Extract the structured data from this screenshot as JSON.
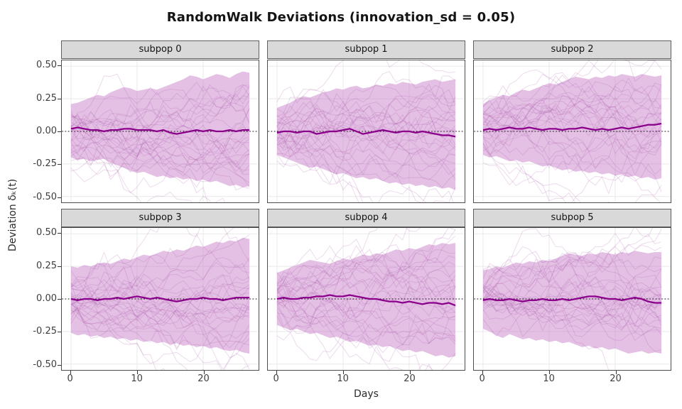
{
  "chart_data": {
    "type": "line",
    "title": "RandomWalk Deviations (innovation_sd = 0.05)",
    "xlabel": "Days",
    "ylabel": "Deviation δₖ(t)",
    "innovation_sd": 0.05,
    "x_ticks": [
      0,
      10,
      20
    ],
    "x_tick_labels": [
      "0",
      "10",
      "20"
    ],
    "y_ticks": [
      0.5,
      0.25,
      0.0,
      -0.25,
      -0.5
    ],
    "y_tick_labels": [
      "0.50",
      "0.25",
      "0.00",
      "-0.25",
      "-0.50"
    ],
    "xlim": [
      -1.35,
      28.35
    ],
    "ylim": [
      -0.545,
      0.545
    ],
    "grid": "major-light-gray-on-white",
    "legend": "none",
    "zero_reference_line": 0.0,
    "days": [
      0,
      1,
      2,
      3,
      4,
      5,
      6,
      7,
      8,
      9,
      10,
      11,
      12,
      13,
      14,
      15,
      16,
      17,
      18,
      19,
      20,
      21,
      22,
      23,
      24,
      25,
      26,
      27
    ],
    "colors": {
      "ribbon_fill": "#c77cc9",
      "trajectory_stroke": "#a855a8",
      "median_stroke": "#8b008b",
      "zero_line": "#000000",
      "gridline": "#e9e9e9",
      "strip_bg": "#d9d9d9",
      "panel_border": "#4d4d4d"
    },
    "facets": [
      {
        "label": "subpop 0",
        "traj_seed": 11,
        "traj_count": 30,
        "median": [
          0.02,
          0.03,
          0.02,
          0.01,
          0.01,
          0.0,
          0.01,
          0.01,
          0.02,
          0.02,
          0.01,
          0.01,
          0.01,
          0.0,
          0.01,
          -0.01,
          -0.02,
          -0.01,
          0.0,
          0.01,
          0.0,
          0.01,
          0.0,
          0.0,
          0.01,
          0.0,
          0.01,
          0.01
        ],
        "upper": [
          0.21,
          0.22,
          0.24,
          0.26,
          0.28,
          0.27,
          0.3,
          0.32,
          0.34,
          0.33,
          0.31,
          0.32,
          0.33,
          0.32,
          0.34,
          0.36,
          0.38,
          0.4,
          0.43,
          0.42,
          0.4,
          0.42,
          0.44,
          0.43,
          0.41,
          0.44,
          0.46,
          0.45
        ],
        "lower": [
          -0.2,
          -0.22,
          -0.21,
          -0.23,
          -0.22,
          -0.21,
          -0.24,
          -0.26,
          -0.28,
          -0.3,
          -0.32,
          -0.31,
          -0.33,
          -0.35,
          -0.34,
          -0.36,
          -0.35,
          -0.37,
          -0.36,
          -0.38,
          -0.37,
          -0.39,
          -0.38,
          -0.4,
          -0.42,
          -0.41,
          -0.43,
          -0.42
        ]
      },
      {
        "label": "subpop 1",
        "traj_seed": 23,
        "traj_count": 30,
        "median": [
          -0.01,
          0.0,
          0.0,
          -0.01,
          0.0,
          0.0,
          -0.02,
          -0.01,
          0.0,
          0.0,
          0.01,
          0.02,
          0.0,
          -0.02,
          -0.01,
          0.0,
          0.01,
          0.0,
          -0.01,
          0.0,
          0.0,
          -0.01,
          0.0,
          -0.01,
          -0.02,
          -0.03,
          -0.03,
          -0.04
        ],
        "upper": [
          0.18,
          0.2,
          0.22,
          0.25,
          0.27,
          0.26,
          0.28,
          0.3,
          0.31,
          0.33,
          0.32,
          0.34,
          0.35,
          0.33,
          0.34,
          0.36,
          0.35,
          0.37,
          0.36,
          0.38,
          0.37,
          0.36,
          0.38,
          0.39,
          0.4,
          0.38,
          0.39,
          0.4
        ],
        "lower": [
          -0.18,
          -0.2,
          -0.22,
          -0.24,
          -0.26,
          -0.28,
          -0.27,
          -0.29,
          -0.31,
          -0.33,
          -0.32,
          -0.34,
          -0.36,
          -0.35,
          -0.37,
          -0.36,
          -0.38,
          -0.4,
          -0.39,
          -0.41,
          -0.4,
          -0.42,
          -0.41,
          -0.43,
          -0.42,
          -0.44,
          -0.43,
          -0.45
        ]
      },
      {
        "label": "subpop 2",
        "traj_seed": 37,
        "traj_count": 30,
        "median": [
          0.01,
          0.02,
          0.01,
          0.02,
          0.03,
          0.02,
          0.02,
          0.03,
          0.02,
          0.01,
          0.02,
          0.02,
          0.01,
          0.02,
          0.02,
          0.03,
          0.02,
          0.01,
          0.02,
          0.01,
          0.02,
          0.03,
          0.02,
          0.03,
          0.04,
          0.05,
          0.05,
          0.06
        ],
        "upper": [
          0.21,
          0.24,
          0.26,
          0.28,
          0.27,
          0.3,
          0.32,
          0.31,
          0.33,
          0.35,
          0.37,
          0.36,
          0.38,
          0.4,
          0.42,
          0.41,
          0.4,
          0.42,
          0.41,
          0.43,
          0.42,
          0.44,
          0.43,
          0.42,
          0.44,
          0.43,
          0.42,
          0.43
        ],
        "lower": [
          -0.18,
          -0.2,
          -0.19,
          -0.21,
          -0.23,
          -0.22,
          -0.24,
          -0.23,
          -0.25,
          -0.27,
          -0.26,
          -0.28,
          -0.3,
          -0.29,
          -0.31,
          -0.3,
          -0.32,
          -0.31,
          -0.33,
          -0.32,
          -0.34,
          -0.33,
          -0.35,
          -0.34,
          -0.36,
          -0.35,
          -0.37,
          -0.36
        ]
      },
      {
        "label": "subpop 3",
        "traj_seed": 41,
        "traj_count": 30,
        "median": [
          0.0,
          -0.01,
          0.0,
          0.0,
          -0.01,
          0.0,
          0.0,
          0.01,
          0.0,
          0.01,
          0.02,
          0.01,
          0.0,
          0.01,
          0.0,
          -0.01,
          -0.02,
          -0.01,
          0.0,
          0.0,
          0.01,
          0.0,
          0.0,
          -0.01,
          0.0,
          0.01,
          0.01,
          0.01
        ],
        "upper": [
          0.25,
          0.24,
          0.26,
          0.25,
          0.27,
          0.28,
          0.27,
          0.29,
          0.31,
          0.3,
          0.32,
          0.34,
          0.33,
          0.35,
          0.37,
          0.36,
          0.38,
          0.37,
          0.39,
          0.41,
          0.4,
          0.42,
          0.44,
          0.43,
          0.45,
          0.44,
          0.47,
          0.46
        ],
        "lower": [
          -0.26,
          -0.28,
          -0.27,
          -0.29,
          -0.28,
          -0.3,
          -0.29,
          -0.31,
          -0.3,
          -0.32,
          -0.31,
          -0.33,
          -0.32,
          -0.34,
          -0.33,
          -0.35,
          -0.34,
          -0.36,
          -0.35,
          -0.37,
          -0.36,
          -0.38,
          -0.37,
          -0.39,
          -0.4,
          -0.39,
          -0.41,
          -0.42
        ]
      },
      {
        "label": "subpop 4",
        "traj_seed": 53,
        "traj_count": 30,
        "median": [
          0.0,
          0.01,
          0.0,
          0.0,
          0.01,
          0.01,
          0.02,
          0.02,
          0.03,
          0.02,
          0.02,
          0.03,
          0.02,
          0.01,
          0.0,
          0.0,
          -0.01,
          -0.02,
          -0.02,
          -0.03,
          -0.02,
          -0.03,
          -0.04,
          -0.03,
          -0.03,
          -0.04,
          -0.03,
          -0.05
        ],
        "upper": [
          0.2,
          0.22,
          0.24,
          0.26,
          0.28,
          0.3,
          0.29,
          0.28,
          0.27,
          0.29,
          0.31,
          0.3,
          0.32,
          0.34,
          0.33,
          0.35,
          0.34,
          0.36,
          0.38,
          0.37,
          0.39,
          0.38,
          0.4,
          0.42,
          0.41,
          0.43,
          0.42,
          0.43
        ],
        "lower": [
          -0.2,
          -0.22,
          -0.24,
          -0.23,
          -0.25,
          -0.27,
          -0.26,
          -0.28,
          -0.3,
          -0.29,
          -0.31,
          -0.33,
          -0.32,
          -0.34,
          -0.36,
          -0.35,
          -0.37,
          -0.36,
          -0.38,
          -0.4,
          -0.39,
          -0.41,
          -0.4,
          -0.42,
          -0.44,
          -0.43,
          -0.45,
          -0.44
        ]
      },
      {
        "label": "subpop 5",
        "traj_seed": 67,
        "traj_count": 30,
        "median": [
          -0.01,
          0.0,
          -0.01,
          -0.01,
          0.0,
          -0.01,
          -0.02,
          -0.01,
          -0.01,
          0.0,
          -0.01,
          -0.01,
          0.0,
          -0.01,
          0.0,
          0.01,
          0.02,
          0.02,
          0.01,
          0.0,
          0.0,
          -0.01,
          0.0,
          0.01,
          0.0,
          -0.02,
          -0.03,
          -0.03
        ],
        "upper": [
          0.22,
          0.23,
          0.25,
          0.24,
          0.26,
          0.28,
          0.27,
          0.29,
          0.28,
          0.3,
          0.29,
          0.31,
          0.33,
          0.35,
          0.34,
          0.33,
          0.35,
          0.34,
          0.36,
          0.35,
          0.34,
          0.36,
          0.35,
          0.37,
          0.36,
          0.35,
          0.36,
          0.36
        ],
        "lower": [
          -0.23,
          -0.25,
          -0.28,
          -0.3,
          -0.27,
          -0.29,
          -0.31,
          -0.3,
          -0.32,
          -0.31,
          -0.33,
          -0.32,
          -0.34,
          -0.33,
          -0.35,
          -0.37,
          -0.36,
          -0.38,
          -0.37,
          -0.39,
          -0.38,
          -0.4,
          -0.42,
          -0.41,
          -0.4,
          -0.42,
          -0.41,
          -0.42
        ]
      }
    ]
  }
}
